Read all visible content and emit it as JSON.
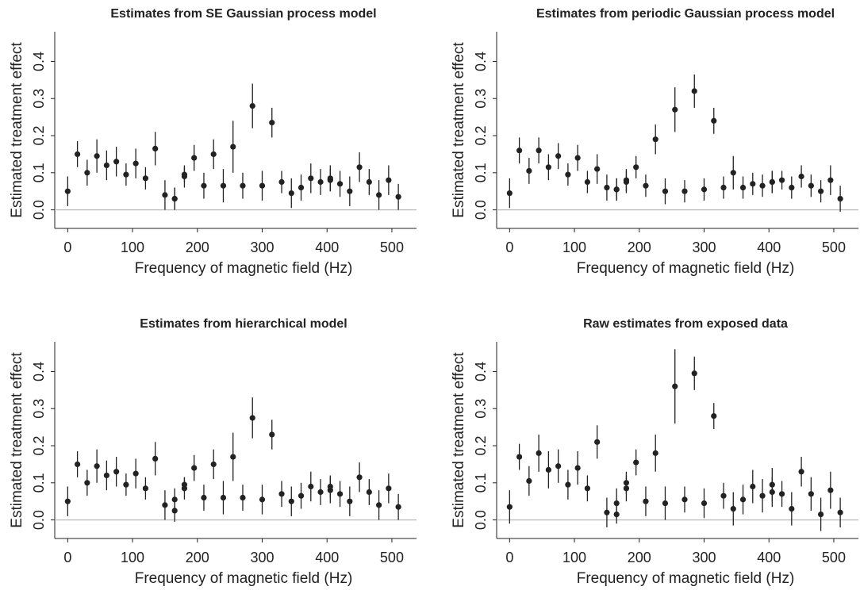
{
  "chart_data": [
    {
      "type": "scatter",
      "title": "Estimates from SE Gaussian process model",
      "x_label": "Frequency of magnetic field (Hz)",
      "y_label": "Estimated treatment effect",
      "x": [
        0,
        15,
        30,
        45,
        60,
        75,
        90,
        105,
        120,
        135,
        150,
        165,
        165,
        180,
        180,
        195,
        210,
        225,
        240,
        255,
        270,
        285,
        300,
        315,
        330,
        345,
        360,
        375,
        390,
        405,
        405,
        420,
        435,
        450,
        465,
        480,
        495,
        510
      ],
      "values": [
        0.05,
        0.15,
        0.1,
        0.145,
        0.12,
        0.13,
        0.095,
        0.125,
        0.085,
        0.165,
        0.04,
        0.03,
        0.03,
        0.09,
        0.095,
        0.14,
        0.065,
        0.15,
        0.065,
        0.17,
        0.065,
        0.28,
        0.065,
        0.235,
        0.075,
        0.045,
        0.06,
        0.085,
        0.075,
        0.085,
        0.08,
        0.07,
        0.05,
        0.115,
        0.075,
        0.04,
        0.08,
        0.035
      ],
      "errors": [
        0.04,
        0.035,
        0.035,
        0.045,
        0.04,
        0.04,
        0.03,
        0.04,
        0.03,
        0.045,
        0.04,
        0.03,
        0.03,
        0.03,
        0.02,
        0.035,
        0.035,
        0.04,
        0.045,
        0.07,
        0.035,
        0.06,
        0.04,
        0.04,
        0.03,
        0.04,
        0.035,
        0.04,
        0.035,
        0.035,
        0.03,
        0.035,
        0.04,
        0.04,
        0.035,
        0.04,
        0.04,
        0.035
      ],
      "color": "#222222",
      "reference_line": 0,
      "xlim": [
        -20,
        538
      ],
      "ylim": [
        -0.05,
        0.48
      ],
      "xticks": [
        0,
        100,
        200,
        300,
        400,
        500
      ],
      "yticks": [
        {
          "value": 0,
          "label": "0.0"
        },
        0.1,
        0.2,
        0.3,
        0.4
      ]
    },
    {
      "type": "scatter",
      "title": "Estimates from periodic Gaussian process model",
      "x_label": "Frequency of magnetic field (Hz)",
      "y_label": "Estimated treatment effect",
      "x": [
        0,
        15,
        30,
        45,
        60,
        75,
        90,
        105,
        120,
        135,
        150,
        165,
        165,
        180,
        180,
        195,
        210,
        225,
        240,
        255,
        270,
        285,
        300,
        315,
        330,
        345,
        360,
        375,
        390,
        405,
        405,
        420,
        435,
        450,
        465,
        480,
        495,
        510
      ],
      "values": [
        0.045,
        0.16,
        0.105,
        0.16,
        0.115,
        0.145,
        0.095,
        0.14,
        0.075,
        0.11,
        0.06,
        0.055,
        0.055,
        0.075,
        0.08,
        0.115,
        0.065,
        0.19,
        0.05,
        0.27,
        0.05,
        0.32,
        0.055,
        0.24,
        0.06,
        0.1,
        0.06,
        0.07,
        0.065,
        0.075,
        0.075,
        0.08,
        0.06,
        0.09,
        0.065,
        0.05,
        0.08,
        0.03
      ],
      "errors": [
        0.04,
        0.035,
        0.035,
        0.035,
        0.035,
        0.035,
        0.03,
        0.035,
        0.03,
        0.04,
        0.035,
        0.03,
        0.03,
        0.03,
        0.03,
        0.03,
        0.03,
        0.04,
        0.035,
        0.06,
        0.03,
        0.045,
        0.03,
        0.035,
        0.03,
        0.045,
        0.03,
        0.03,
        0.03,
        0.03,
        0.03,
        0.025,
        0.03,
        0.03,
        0.03,
        0.03,
        0.04,
        0.035
      ],
      "color": "#222222",
      "reference_line": 0,
      "xlim": [
        -20,
        538
      ],
      "ylim": [
        -0.05,
        0.48
      ],
      "xticks": [
        0,
        100,
        200,
        300,
        400,
        500
      ],
      "yticks": [
        {
          "value": 0,
          "label": "0.0"
        },
        0.1,
        0.2,
        0.3,
        0.4
      ]
    },
    {
      "type": "scatter",
      "title": "Estimates from hierarchical model",
      "x_label": "Frequency of magnetic field (Hz)",
      "y_label": "Estimated treatment effect",
      "x": [
        0,
        15,
        30,
        45,
        60,
        75,
        90,
        105,
        120,
        135,
        150,
        165,
        165,
        180,
        180,
        195,
        210,
        225,
        240,
        255,
        270,
        285,
        300,
        315,
        330,
        345,
        360,
        375,
        390,
        405,
        405,
        420,
        435,
        450,
        465,
        480,
        495,
        510
      ],
      "values": [
        0.05,
        0.15,
        0.1,
        0.145,
        0.12,
        0.13,
        0.095,
        0.125,
        0.085,
        0.165,
        0.04,
        0.025,
        0.055,
        0.085,
        0.095,
        0.14,
        0.06,
        0.15,
        0.06,
        0.17,
        0.06,
        0.275,
        0.055,
        0.23,
        0.07,
        0.05,
        0.065,
        0.09,
        0.075,
        0.08,
        0.09,
        0.07,
        0.05,
        0.115,
        0.075,
        0.04,
        0.085,
        0.035
      ],
      "errors": [
        0.04,
        0.035,
        0.035,
        0.045,
        0.04,
        0.04,
        0.03,
        0.04,
        0.03,
        0.045,
        0.04,
        0.03,
        0.03,
        0.03,
        0.02,
        0.035,
        0.035,
        0.04,
        0.045,
        0.065,
        0.035,
        0.055,
        0.04,
        0.04,
        0.035,
        0.04,
        0.035,
        0.04,
        0.035,
        0.035,
        0.03,
        0.035,
        0.04,
        0.04,
        0.035,
        0.04,
        0.04,
        0.035
      ],
      "color": "#222222",
      "reference_line": 0,
      "xlim": [
        -20,
        538
      ],
      "ylim": [
        -0.05,
        0.48
      ],
      "xticks": [
        0,
        100,
        200,
        300,
        400,
        500
      ],
      "yticks": [
        {
          "value": 0,
          "label": "0.0"
        },
        0.1,
        0.2,
        0.3,
        0.4
      ]
    },
    {
      "type": "scatter",
      "title": "Raw estimates from exposed data",
      "x_label": "Frequency of magnetic field (Hz)",
      "y_label": "Estimated treatment effect",
      "x": [
        0,
        15,
        30,
        45,
        60,
        75,
        90,
        105,
        120,
        135,
        150,
        165,
        165,
        180,
        180,
        195,
        210,
        225,
        240,
        255,
        270,
        285,
        300,
        315,
        330,
        345,
        360,
        375,
        390,
        405,
        405,
        420,
        435,
        450,
        465,
        480,
        495,
        510
      ],
      "values": [
        0.035,
        0.17,
        0.105,
        0.18,
        0.135,
        0.145,
        0.095,
        0.14,
        0.085,
        0.21,
        0.02,
        0.045,
        0.015,
        0.1,
        0.085,
        0.155,
        0.05,
        0.18,
        0.045,
        0.36,
        0.055,
        0.395,
        0.045,
        0.28,
        0.065,
        0.03,
        0.055,
        0.09,
        0.065,
        0.095,
        0.075,
        0.07,
        0.03,
        0.13,
        0.07,
        0.015,
        0.08,
        0.02
      ],
      "errors": [
        0.045,
        0.035,
        0.04,
        0.05,
        0.05,
        0.045,
        0.04,
        0.045,
        0.035,
        0.045,
        0.04,
        0.04,
        0.025,
        0.03,
        0.035,
        0.035,
        0.04,
        0.05,
        0.045,
        0.1,
        0.035,
        0.045,
        0.04,
        0.035,
        0.035,
        0.045,
        0.04,
        0.045,
        0.045,
        0.045,
        0.04,
        0.035,
        0.045,
        0.04,
        0.045,
        0.045,
        0.05,
        0.04
      ],
      "color": "#222222",
      "reference_line": 0,
      "xlim": [
        -20,
        538
      ],
      "ylim": [
        -0.05,
        0.48
      ],
      "xticks": [
        0,
        100,
        200,
        300,
        400,
        500
      ],
      "yticks": [
        {
          "value": 0,
          "label": "0.0"
        },
        0.1,
        0.2,
        0.3,
        0.4
      ]
    }
  ]
}
